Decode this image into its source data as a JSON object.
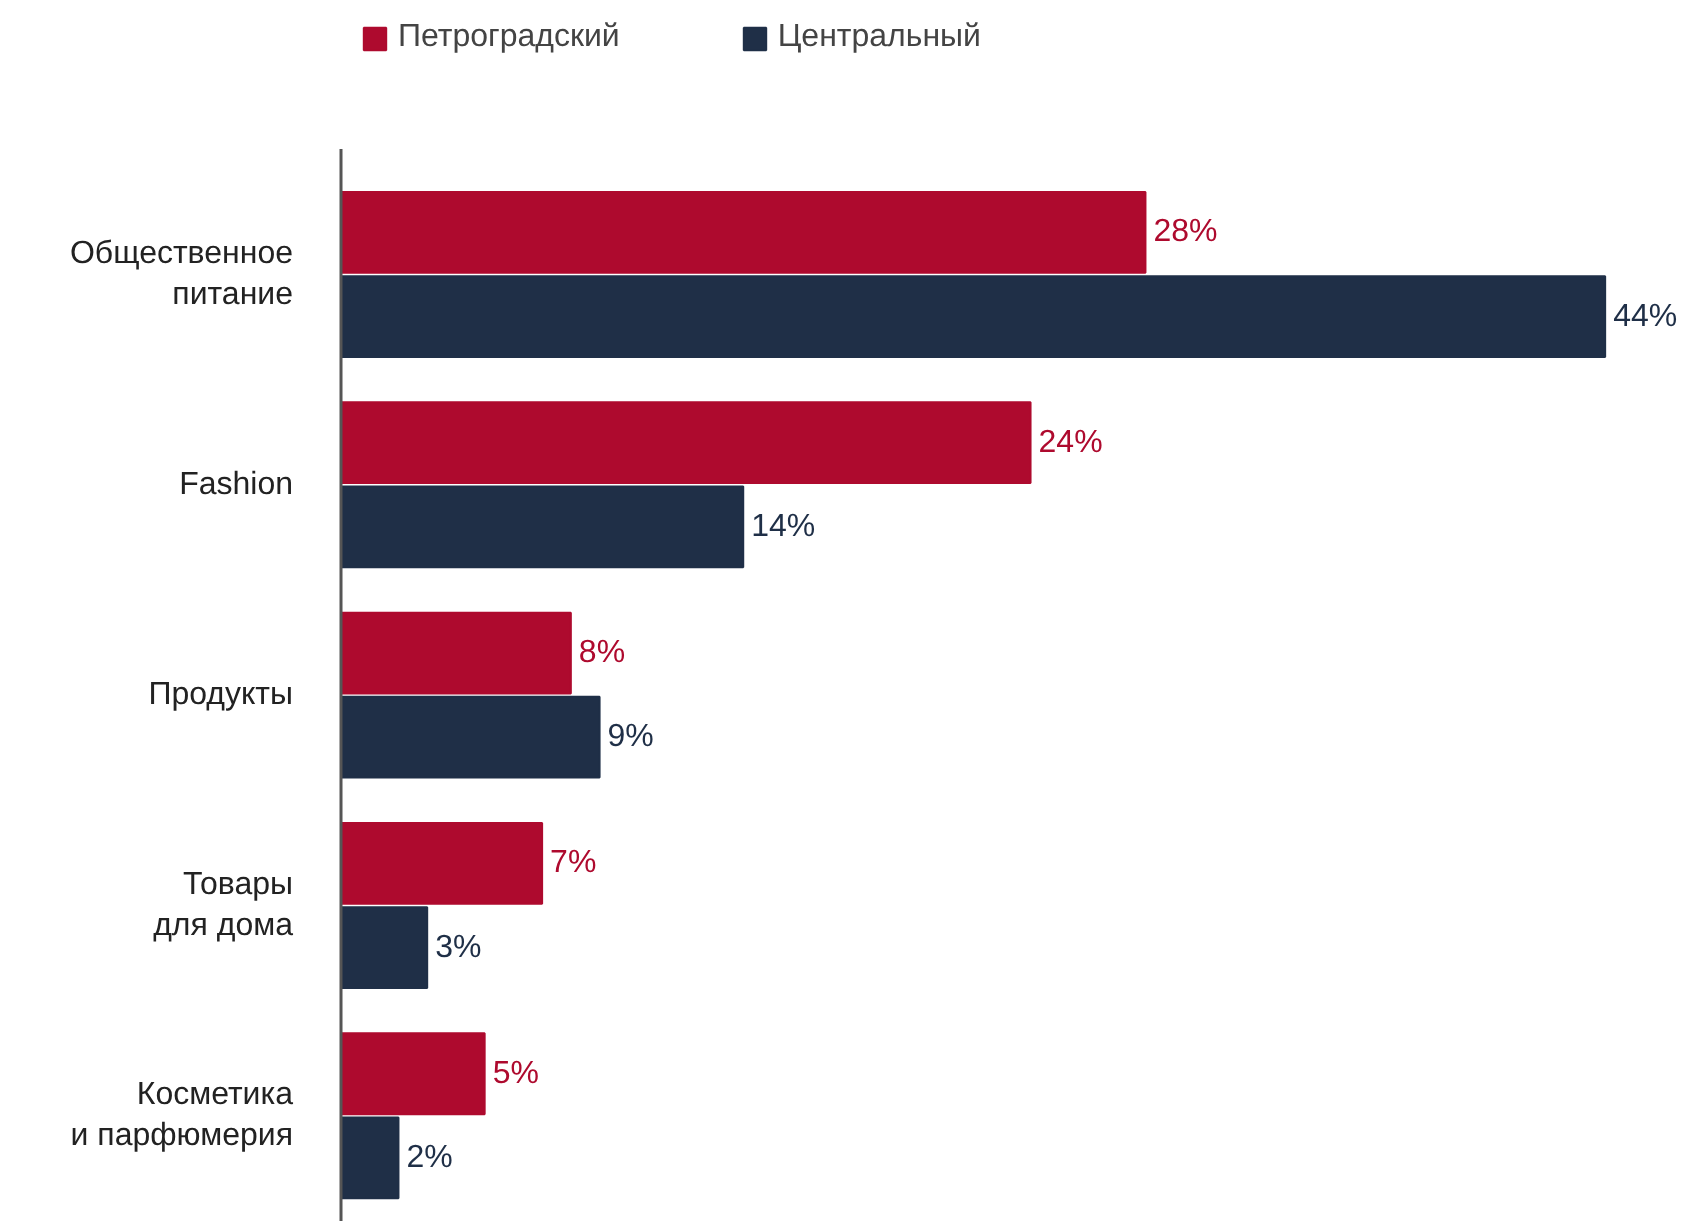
{
  "chart_data": {
    "type": "bar",
    "orientation": "horizontal",
    "categories": [
      "Общественное\nпитание",
      "Fashion",
      "Продукты",
      "Товары\nдля дома",
      "Косметика\nи парфюмерия"
    ],
    "series": [
      {
        "name": "Петроградский",
        "color": "#ae0a2e",
        "values": [
          28,
          24,
          8,
          7,
          5
        ],
        "value_labels": [
          "28%",
          "24%",
          "8%",
          "7%",
          "5%"
        ]
      },
      {
        "name": "Центральный",
        "color": "#1f2f47",
        "values": [
          44,
          14,
          9,
          3,
          2
        ],
        "value_labels": [
          "44%",
          "14%",
          "9%",
          "3%",
          "2%"
        ]
      }
    ],
    "legend": "top left",
    "grid": false
  }
}
